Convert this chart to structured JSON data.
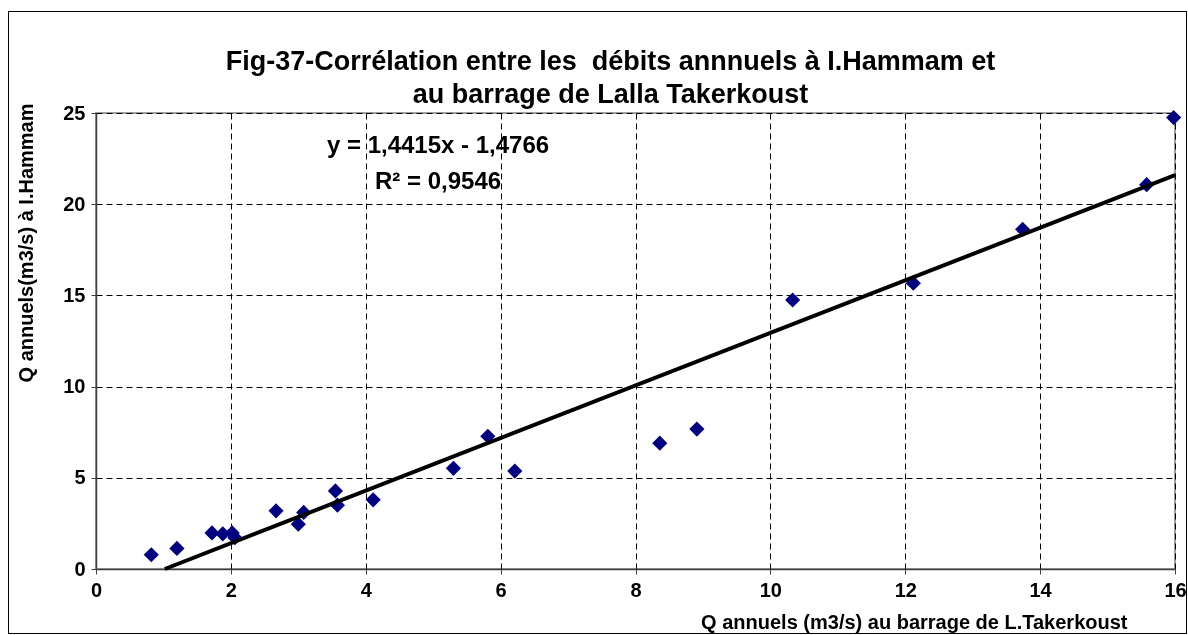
{
  "chart_data": {
    "type": "scatter",
    "title": "Fig-37-Corrélation entre les  débits annnuels à I.Hammam et au barrage de Lalla Takerkoust",
    "xlabel": "Q annuels (m3/s) au barrage de L.Takerkoust",
    "ylabel": "Q annuels(m3/s) à I.Hammam",
    "xlim": [
      0,
      16
    ],
    "xticks": [
      0,
      2,
      4,
      6,
      8,
      10,
      12,
      14,
      16
    ],
    "ylim": [
      0,
      25
    ],
    "yticks": [
      0,
      5,
      10,
      15,
      20,
      25
    ],
    "grid": true,
    "annotations": [
      "y = 1,4415x - 1,4766",
      "R² = 0,9546"
    ],
    "series": [
      {
        "marker": "diamond",
        "color": "#000080",
        "x": [
          0.82,
          1.2,
          1.72,
          1.88,
          2.02,
          2.06,
          2.67,
          3.0,
          3.08,
          3.55,
          3.58,
          4.11,
          5.3,
          5.81,
          6.21,
          8.36,
          8.91,
          10.33,
          12.12,
          13.74,
          15.58,
          15.98
        ],
        "values": [
          0.78,
          1.13,
          1.98,
          1.93,
          1.98,
          1.72,
          3.19,
          2.46,
          3.1,
          4.28,
          3.5,
          3.79,
          5.52,
          7.28,
          5.37,
          6.9,
          7.67,
          14.75,
          15.67,
          18.62,
          21.07,
          24.75
        ]
      },
      {
        "type": "line",
        "color": "#000000",
        "line_style": "solid",
        "x": [
          1.02,
          16
        ],
        "values": [
          0,
          21.59
        ]
      }
    ]
  }
}
